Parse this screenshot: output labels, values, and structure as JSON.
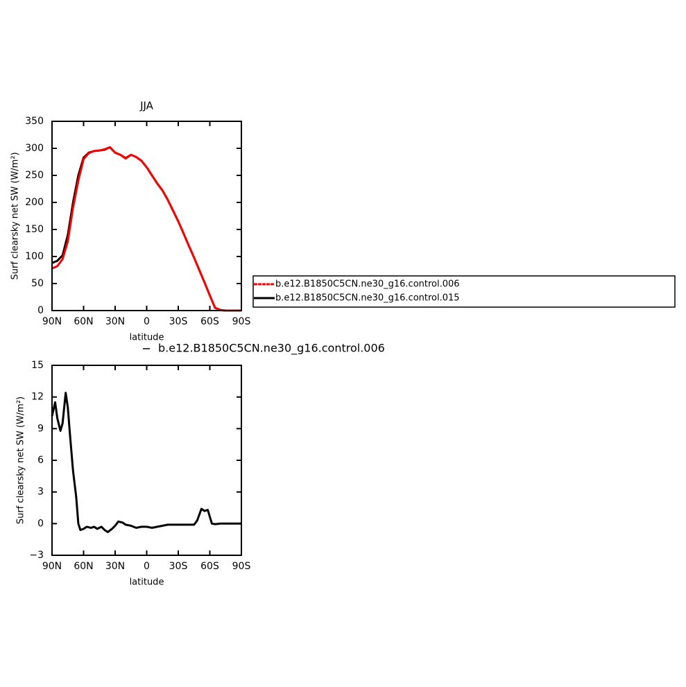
{
  "chart_data": [
    {
      "type": "line",
      "title": "JJA",
      "xlabel": "latitude",
      "ylabel": "Surf clearsky net SW (W/m²)",
      "x": [
        90,
        85,
        80,
        75,
        70,
        65,
        60,
        55,
        50,
        45,
        40,
        35,
        30,
        25,
        20,
        15,
        10,
        5,
        0,
        -5,
        -10,
        -15,
        -20,
        -25,
        -30,
        -35,
        -40,
        -45,
        -50,
        -55,
        -60,
        -65,
        -70,
        -75,
        -80,
        -85,
        -90
      ],
      "series": [
        {
          "name": "b.e12.B1850C5CN.ne30_g16.control.006",
          "color": "#ff0000",
          "values": [
            78,
            82,
            95,
            128,
            190,
            240,
            280,
            291,
            295,
            296,
            297,
            302,
            292,
            288,
            281,
            288,
            284,
            277,
            265,
            250,
            235,
            222,
            205,
            185,
            165,
            143,
            120,
            98,
            75,
            52,
            28,
            5,
            1,
            0,
            0,
            0,
            0
          ]
        },
        {
          "name": "b.e12.B1850C5CN.ne30_g16.control.015",
          "color": "#000000",
          "values": [
            88,
            92,
            102,
            140,
            200,
            250,
            283,
            292,
            295,
            296,
            298,
            302,
            292,
            288,
            282,
            288,
            284,
            277,
            265,
            250,
            235,
            222,
            205,
            185,
            165,
            143,
            120,
            98,
            75,
            52,
            28,
            5,
            1,
            0,
            0,
            0,
            0
          ]
        }
      ],
      "xlim": [
        90,
        -90
      ],
      "xticks": [
        {
          "value": 90,
          "label": "90N"
        },
        {
          "value": 60,
          "label": "60N"
        },
        {
          "value": 30,
          "label": "30N"
        },
        0,
        {
          "value": -30,
          "label": "30S"
        },
        {
          "value": -60,
          "label": "60S"
        },
        {
          "value": -90,
          "label": "90S"
        }
      ],
      "ylim": [
        0,
        350
      ],
      "yticks": [
        0,
        50,
        100,
        150,
        200,
        250,
        300,
        350
      ],
      "legend": "right"
    },
    {
      "type": "line",
      "xlabel": "latitude",
      "ylabel": "Surf clearsky net SW (W/m²)",
      "x": [
        90,
        87,
        85,
        82,
        80,
        77,
        75,
        73,
        70,
        67,
        65,
        63,
        60,
        57,
        53,
        50,
        47,
        43,
        40,
        37,
        33,
        30,
        27,
        23,
        20,
        15,
        10,
        5,
        0,
        -5,
        -10,
        -15,
        -20,
        -25,
        -30,
        -35,
        -40,
        -45,
        -48,
        -52,
        -55,
        -58,
        -62,
        -65,
        -70,
        -90
      ],
      "series": [
        {
          "name": "b.e12.B1850C5CN.ne30_g16.control.006",
          "color": "#000000",
          "values": [
            10.2,
            11.5,
            10,
            8.8,
            9.5,
            12.4,
            11,
            8.5,
            5,
            2.5,
            0,
            -0.6,
            -0.5,
            -0.3,
            -0.4,
            -0.3,
            -0.5,
            -0.3,
            -0.6,
            -0.8,
            -0.5,
            -0.2,
            0.2,
            0.1,
            -0.1,
            -0.2,
            -0.4,
            -0.3,
            -0.3,
            -0.4,
            -0.3,
            -0.2,
            -0.1,
            -0.1,
            -0.1,
            -0.1,
            -0.1,
            -0.1,
            0.3,
            1.4,
            1.2,
            1.3,
            0,
            -0.05,
            0,
            0
          ]
        }
      ],
      "xlim": [
        90,
        -90
      ],
      "xticks": [
        {
          "value": 90,
          "label": "90N"
        },
        {
          "value": 60,
          "label": "60N"
        },
        {
          "value": 30,
          "label": "30N"
        },
        0,
        {
          "value": -30,
          "label": "30S"
        },
        {
          "value": -60,
          "label": "60S"
        },
        {
          "value": -90,
          "label": "90S"
        }
      ],
      "ylim": [
        -3,
        15
      ],
      "yticks": [
        {
          "value": -3,
          "label": "−3"
        },
        0,
        3,
        6,
        9,
        12,
        15
      ],
      "legend": "top"
    }
  ]
}
